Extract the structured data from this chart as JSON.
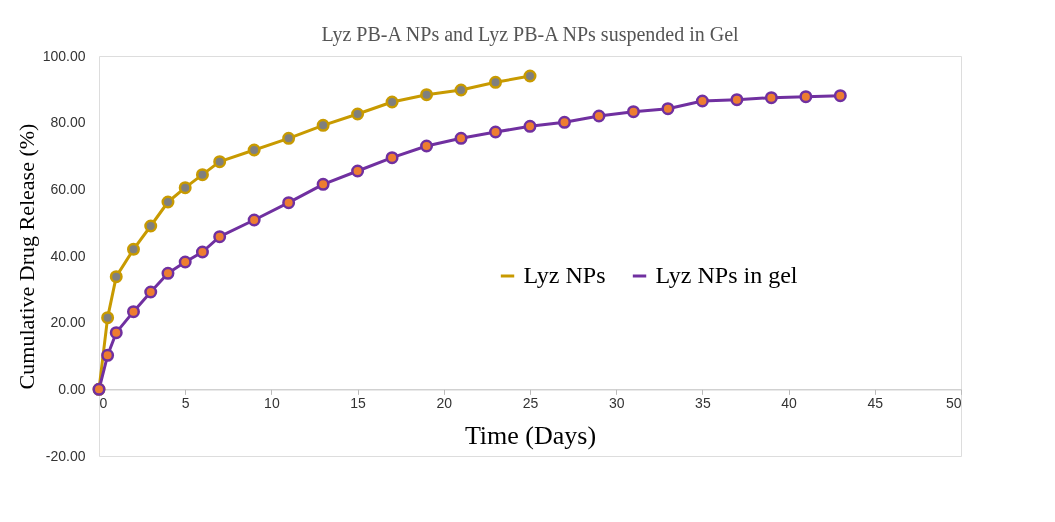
{
  "chart_data": {
    "type": "line",
    "title": "Lyz PB-A NPs and Lyz PB-A NPs suspended in Gel",
    "xlabel": "Time (Days)",
    "ylabel": "Cumulative Drug Release (%)",
    "xlim": [
      0,
      50
    ],
    "xticks": [
      0,
      5,
      10,
      15,
      20,
      25,
      30,
      35,
      40,
      45,
      50
    ],
    "ylim": [
      -20,
      100
    ],
    "yticks": [
      {
        "value": -20,
        "label": "-20.00"
      },
      {
        "value": 0,
        "label": "0.00"
      },
      {
        "value": 20,
        "label": "20.00"
      },
      {
        "value": 40,
        "label": "40.00"
      },
      {
        "value": 60,
        "label": "60.00"
      },
      {
        "value": 80,
        "label": "80.00"
      },
      {
        "value": 100,
        "label": "100.00"
      }
    ],
    "grid": false,
    "legend": "right",
    "marker": "circle",
    "line_style": "solid",
    "series": [
      {
        "name": "Lyz NPs",
        "color": "#c89a00",
        "x": [
          0,
          0.5,
          1,
          2,
          3,
          4,
          5,
          6,
          7,
          9,
          11,
          13,
          15,
          17,
          19,
          21,
          23,
          25
        ],
        "values": [
          0,
          21.5,
          33.8,
          42,
          49,
          56.2,
          60.5,
          64.4,
          68.3,
          71.8,
          75.3,
          79.2,
          82.6,
          86.2,
          88.4,
          89.8,
          92.1,
          94.0
        ]
      },
      {
        "name": "Lyz NPs in gel",
        "color": "#7030a0",
        "x": [
          0,
          0.5,
          1,
          2,
          3,
          4,
          5,
          6,
          7,
          9,
          11,
          13,
          15,
          17,
          19,
          21,
          23,
          25,
          27,
          29,
          31,
          33,
          35,
          37,
          39,
          41,
          43
        ],
        "values": [
          0,
          10.2,
          17,
          23.3,
          29.2,
          34.8,
          38.2,
          41.2,
          45.8,
          50.8,
          56,
          61.5,
          65.5,
          69.5,
          73,
          75.3,
          77.2,
          78.9,
          80.1,
          82,
          83.3,
          84.2,
          86.5,
          86.9,
          87.5,
          87.8,
          88.1
        ]
      }
    ]
  }
}
